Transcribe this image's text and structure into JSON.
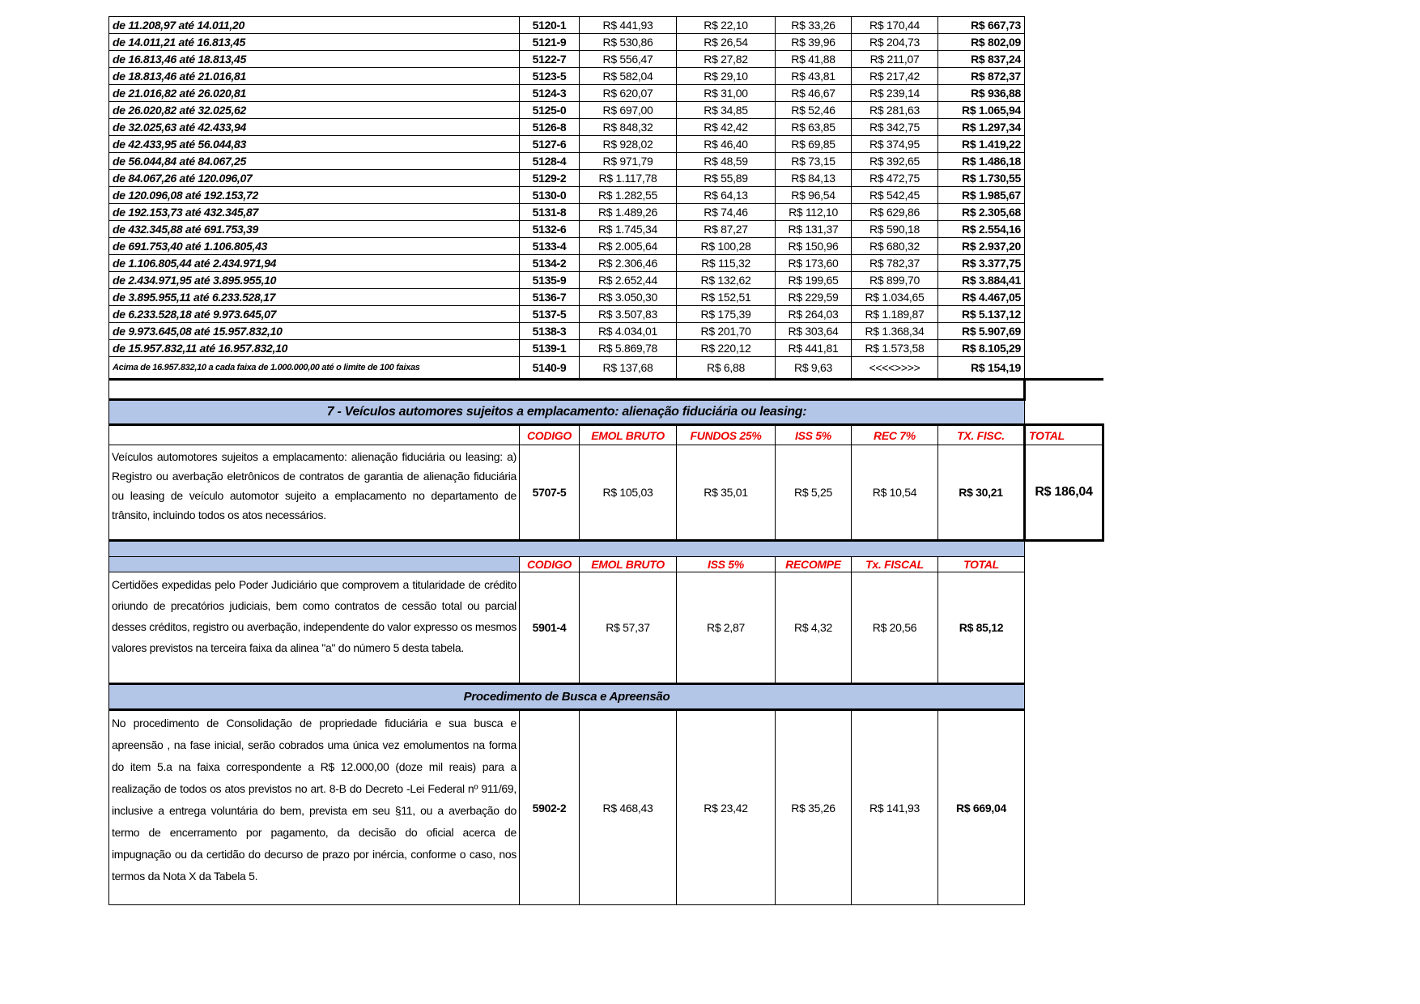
{
  "bands": [
    {
      "range": "de 11.208,97 até 14.011,20",
      "code": "5120-1",
      "emol": "R$ 441,93",
      "c2": "R$ 22,10",
      "c3": "R$ 33,26",
      "c4": "R$ 170,44",
      "total": "R$ 667,73"
    },
    {
      "range": "de 14.011,21 até 16.813,45",
      "code": "5121-9",
      "emol": "R$ 530,86",
      "c2": "R$ 26,54",
      "c3": "R$ 39,96",
      "c4": "R$ 204,73",
      "total": "R$ 802,09"
    },
    {
      "range": "de 16.813,46 até 18.813,45",
      "code": "5122-7",
      "emol": "R$ 556,47",
      "c2": "R$ 27,82",
      "c3": "R$ 41,88",
      "c4": "R$ 211,07",
      "total": "R$ 837,24"
    },
    {
      "range": "de 18.813,46 até 21.016,81",
      "code": "5123-5",
      "emol": "R$ 582,04",
      "c2": "R$ 29,10",
      "c3": "R$ 43,81",
      "c4": "R$ 217,42",
      "total": "R$ 872,37"
    },
    {
      "range": "de 21.016,82 até 26.020,81",
      "code": "5124-3",
      "emol": "R$ 620,07",
      "c2": "R$ 31,00",
      "c3": "R$ 46,67",
      "c4": "R$ 239,14",
      "total": "R$ 936,88"
    },
    {
      "range": "de 26.020,82 até 32.025,62",
      "code": "5125-0",
      "emol": "R$ 697,00",
      "c2": "R$ 34,85",
      "c3": "R$ 52,46",
      "c4": "R$ 281,63",
      "total": "R$ 1.065,94"
    },
    {
      "range": "de 32.025,63 até 42.433,94",
      "code": "5126-8",
      "emol": "R$ 848,32",
      "c2": "R$ 42,42",
      "c3": "R$ 63,85",
      "c4": "R$ 342,75",
      "total": "R$ 1.297,34"
    },
    {
      "range": "de 42.433,95 até 56.044,83",
      "code": "5127-6",
      "emol": "R$ 928,02",
      "c2": "R$ 46,40",
      "c3": "R$ 69,85",
      "c4": "R$ 374,95",
      "total": "R$ 1.419,22"
    },
    {
      "range": "de 56.044,84 até 84.067,25",
      "code": "5128-4",
      "emol": "R$ 971,79",
      "c2": "R$ 48,59",
      "c3": "R$ 73,15",
      "c4": "R$ 392,65",
      "total": "R$ 1.486,18"
    },
    {
      "range": "de 84.067,26 até 120.096,07",
      "code": "5129-2",
      "emol": "R$ 1.117,78",
      "c2": "R$ 55,89",
      "c3": "R$ 84,13",
      "c4": "R$ 472,75",
      "total": "R$ 1.730,55"
    },
    {
      "range": "de 120.096,08 até 192.153,72",
      "code": "5130-0",
      "emol": "R$ 1.282,55",
      "c2": "R$ 64,13",
      "c3": "R$ 96,54",
      "c4": "R$ 542,45",
      "total": "R$ 1.985,67"
    },
    {
      "range": "de 192.153,73 até 432.345,87",
      "code": "5131-8",
      "emol": "R$ 1.489,26",
      "c2": "R$ 74,46",
      "c3": "R$ 112,10",
      "c4": "R$ 629,86",
      "total": "R$ 2.305,68"
    },
    {
      "range": "de 432.345,88 até 691.753,39",
      "code": "5132-6",
      "emol": "R$ 1.745,34",
      "c2": "R$ 87,27",
      "c3": "R$ 131,37",
      "c4": "R$ 590,18",
      "total": "R$ 2.554,16"
    },
    {
      "range": "de 691.753,40 até 1.106.805,43",
      "code": "5133-4",
      "emol": "R$ 2.005,64",
      "c2": "R$ 100,28",
      "c3": "R$ 150,96",
      "c4": "R$ 680,32",
      "total": "R$ 2.937,20"
    },
    {
      "range": "de 1.106.805,44 até 2.434.971,94",
      "code": "5134-2",
      "emol": "R$ 2.306,46",
      "c2": "R$ 115,32",
      "c3": "R$ 173,60",
      "c4": "R$ 782,37",
      "total": "R$ 3.377,75"
    },
    {
      "range": "de 2.434.971,95 até 3.895.955,10",
      "code": "5135-9",
      "emol": "R$ 2.652,44",
      "c2": "R$ 132,62",
      "c3": "R$ 199,65",
      "c4": "R$ 899,70",
      "total": "R$ 3.884,41"
    },
    {
      "range": "de 3.895.955,11 até 6.233.528,17",
      "code": "5136-7",
      "emol": "R$ 3.050,30",
      "c2": "R$ 152,51",
      "c3": "R$ 229,59",
      "c4": "R$ 1.034,65",
      "total": "R$ 4.467,05"
    },
    {
      "range": "de 6.233.528,18 até 9.973.645,07",
      "code": "5137-5",
      "emol": "R$ 3.507,83",
      "c2": "R$ 175,39",
      "c3": "R$ 264,03",
      "c4": "R$ 1.189,87",
      "total": "R$ 5.137,12"
    },
    {
      "range": "de 9.973.645,08 até 15.957.832,10",
      "code": "5138-3",
      "emol": "R$ 4.034,01",
      "c2": "R$ 201,70",
      "c3": "R$ 303,64",
      "c4": "R$ 1.368,34",
      "total": "R$ 5.907,69"
    },
    {
      "range": "de 15.957.832,11 até 16.957.832,10",
      "code": "5139-1",
      "emol": "R$ 5.869,78",
      "c2": "R$ 220,12",
      "c3": "R$ 441,81",
      "c4": "R$ 1.573,58",
      "total": "R$ 8.105,29"
    }
  ],
  "above": {
    "range": "Acima de 16.957.832,10 a cada faixa de 1.000.000,00 até o limite de 100 faixas",
    "code": "5140-9",
    "emol": "R$ 137,68",
    "c2": "R$ 6,88",
    "c3": "R$ 9,63",
    "c4": "<<<<>>>>",
    "total": "R$ 154,19"
  },
  "section7": {
    "title": "7 - Veículos automores sujeitos a emplacamento: alienação fiduciária ou leasing:",
    "headers": [
      "CODIGO",
      "EMOL BRUTO",
      "FUNDOS 25%",
      "ISS 5%",
      "REC 7%",
      "TX. FISC.",
      "TOTAL"
    ],
    "desc": "Veículos automotores sujeitos a emplacamento: alienação fiduciária ou leasing: a) Registro ou averbação eletrônicos de contratos de garantia de alienação fiduciária ou leasing de veículo automotor sujeito a emplacamento no departamento de trânsito, incluindo todos os atos necessários.",
    "values": [
      "5707-5",
      "R$ 105,03",
      "R$ 35,01",
      "R$ 5,25",
      "R$ 10,54",
      "R$ 30,21",
      "R$ 186,04"
    ]
  },
  "certidoes": {
    "headers": [
      "CODIGO",
      "EMOL BRUTO",
      "ISS 5%",
      "RECOMPE",
      "Tx. FISCAL",
      "TOTAL"
    ],
    "desc": "Certidões expedidas pelo Poder Judiciário que comprovem a titularidade de crédito oriundo de precatórios judiciais, bem como contratos de cessão total ou parcial desses créditos, registro ou averbação, independente do valor expresso os mesmos valores previstos na terceira faixa da alinea \"a\" do número 5 desta tabela.",
    "values": [
      "5901-4",
      "R$ 57,37",
      "R$ 2,87",
      "R$ 4,32",
      "R$ 20,56",
      "R$ 85,12"
    ]
  },
  "busca": {
    "title": "Procedimento de Busca e Apreensão",
    "desc": "No procedimento de Consolidação de propriedade fiduciária e sua busca e apreensão , na fase inicial, serão cobrados uma única vez emolumentos na forma do item 5.a na faixa correspondente a R$ 12.000,00 (doze mil reais) para a realização de todos os atos previstos no art. 8-B do Decreto -Lei Federal nº 911/69, inclusive a entrega voluntária do bem, prevista em seu §11, ou a averbação do termo de encerramento por pagamento, da decisão do oficial acerca de impugnação ou da certidão do decurso de prazo por inércia, conforme o caso, nos termos da Nota X da Tabela 5.",
    "values": [
      "5902-2",
      "R$ 468,43",
      "R$ 23,42",
      "R$ 35,26",
      "R$ 141,93",
      "R$ 669,04"
    ]
  },
  "colors": {
    "header_red": "#e00000",
    "section_blue": "#b4c6e7"
  }
}
